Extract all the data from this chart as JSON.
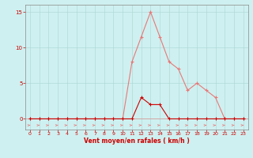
{
  "x": [
    0,
    1,
    2,
    3,
    4,
    5,
    6,
    7,
    8,
    9,
    10,
    11,
    12,
    13,
    14,
    15,
    16,
    17,
    18,
    19,
    20,
    21,
    22,
    23
  ],
  "rafales": [
    0,
    0,
    0,
    0,
    0,
    0,
    0,
    0,
    0,
    0,
    0,
    8,
    11.5,
    15,
    11.5,
    8,
    7,
    4,
    5,
    4,
    3,
    0,
    0,
    0
  ],
  "moyen": [
    0,
    0,
    0,
    0,
    0,
    0,
    0,
    0,
    0,
    0,
    0,
    0,
    3,
    2,
    2,
    0,
    0,
    0,
    0,
    0,
    0,
    0,
    0,
    0
  ],
  "color_rafales": "#e87878",
  "color_moyen": "#cc0000",
  "bg_color": "#cff0f0",
  "grid_color": "#aad4d4",
  "xlabel": "Vent moyen/en rafales ( km/h )",
  "ylim": [
    -1.5,
    16
  ],
  "xlim": [
    -0.5,
    23.5
  ],
  "yticks": [
    0,
    5,
    10,
    15
  ],
  "xticks": [
    0,
    1,
    2,
    3,
    4,
    5,
    6,
    7,
    8,
    9,
    10,
    11,
    12,
    13,
    14,
    15,
    16,
    17,
    18,
    19,
    20,
    21,
    22,
    23
  ]
}
